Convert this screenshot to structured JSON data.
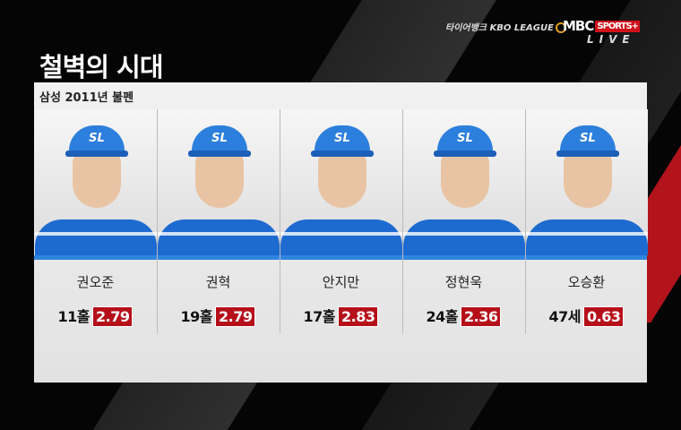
{
  "title": "철벽의 시대",
  "broadcast": {
    "sponsor": "타이어뱅크 KBO LEAGUE",
    "network": "MBC",
    "channel": "SPORTS+",
    "status": "LIVE"
  },
  "panel": {
    "subtitle": "삼성 2011년 불펜",
    "players": [
      {
        "name": "권오준",
        "record": "11홀",
        "era": "2.79",
        "cap_logo": "SL"
      },
      {
        "name": "권혁",
        "record": "19홀",
        "era": "2.79",
        "cap_logo": "SL"
      },
      {
        "name": "안지만",
        "record": "17홀",
        "era": "2.83",
        "cap_logo": "SL"
      },
      {
        "name": "정현욱",
        "record": "24홀",
        "era": "2.36",
        "cap_logo": "SL"
      },
      {
        "name": "오승환",
        "record": "47세",
        "era": "0.63",
        "cap_logo": "SL"
      }
    ]
  },
  "colors": {
    "era_badge": "#b5101a",
    "team_blue": "#2c7fdc",
    "accent_red": "#b3131b"
  }
}
